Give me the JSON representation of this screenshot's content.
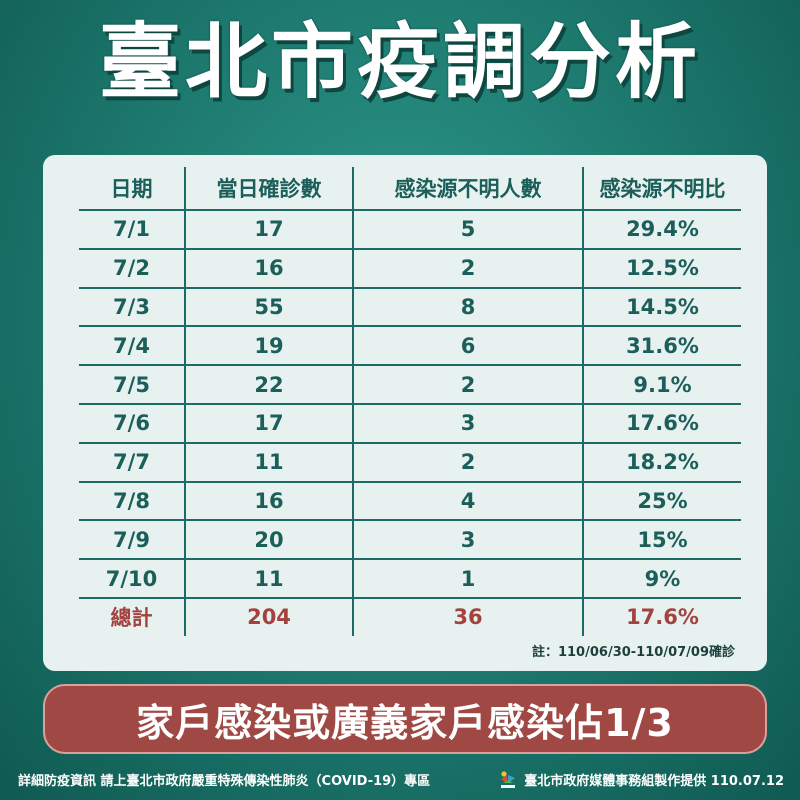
{
  "title": "臺北市疫調分析",
  "table": {
    "headers": [
      "日期",
      "當日確診數",
      "感染源不明人數",
      "感染源不明比"
    ],
    "rows": [
      [
        "7/1",
        "17",
        "5",
        "29.4%"
      ],
      [
        "7/2",
        "16",
        "2",
        "12.5%"
      ],
      [
        "7/3",
        "55",
        "8",
        "14.5%"
      ],
      [
        "7/4",
        "19",
        "6",
        "31.6%"
      ],
      [
        "7/5",
        "22",
        "2",
        "9.1%"
      ],
      [
        "7/6",
        "17",
        "3",
        "17.6%"
      ],
      [
        "7/7",
        "11",
        "2",
        "18.2%"
      ],
      [
        "7/8",
        "16",
        "4",
        "25%"
      ],
      [
        "7/9",
        "20",
        "3",
        "15%"
      ],
      [
        "7/10",
        "11",
        "1",
        "9%"
      ]
    ],
    "total": [
      "總計",
      "204",
      "36",
      "17.6%"
    ]
  },
  "note": "註：110/06/30-110/07/09確診",
  "banner": "家戶感染或廣義家戶感染佔1/3",
  "footer": {
    "left": "詳細防疫資訊 請上臺北市政府嚴重特殊傳染性肺炎（COVID-19）專區",
    "right": "臺北市政府媒體事務組製作提供 110.07.12",
    "logo_text": "TAIPEI"
  },
  "colors": {
    "background": "#1f7d72",
    "card": "#e7f2f0",
    "table_text": "#1c5e59",
    "total_text": "#a3423f",
    "banner": "#a04844"
  }
}
